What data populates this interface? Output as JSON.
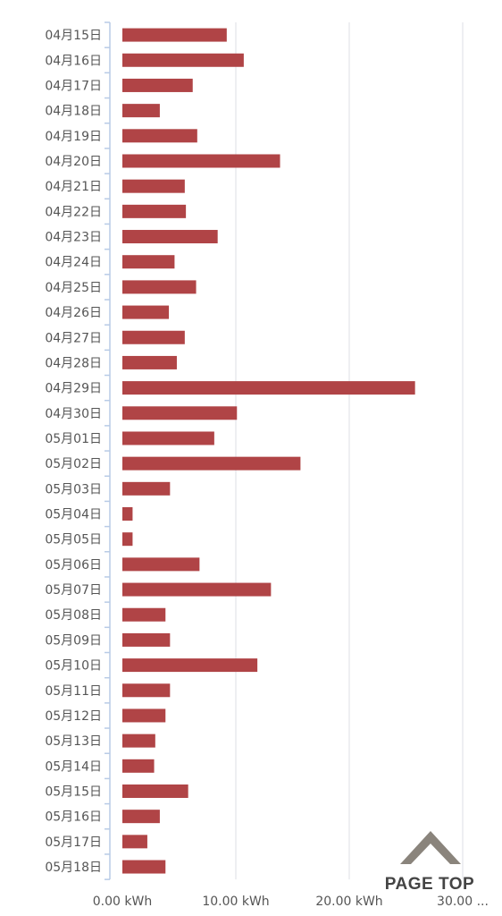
{
  "chart_data": {
    "type": "bar",
    "orientation": "horizontal",
    "categories": [
      "04月15日",
      "04月16日",
      "04月17日",
      "04月18日",
      "04月19日",
      "04月20日",
      "04月21日",
      "04月22日",
      "04月23日",
      "04月24日",
      "04月25日",
      "04月26日",
      "04月27日",
      "04月28日",
      "04月29日",
      "04月30日",
      "05月01日",
      "05月02日",
      "05月03日",
      "05月04日",
      "05月05日",
      "05月06日",
      "05月07日",
      "05月08日",
      "05月09日",
      "05月10日",
      "05月11日",
      "05月12日",
      "05月13日",
      "05月14日",
      "05月15日",
      "05月16日",
      "05月17日",
      "05月18日"
    ],
    "values": [
      9.2,
      10.7,
      6.2,
      3.3,
      6.6,
      13.9,
      5.5,
      5.6,
      8.4,
      4.6,
      6.5,
      4.1,
      5.5,
      4.8,
      25.8,
      10.1,
      8.1,
      15.7,
      4.2,
      0.9,
      0.9,
      6.8,
      13.1,
      3.8,
      4.2,
      11.9,
      4.2,
      3.8,
      2.9,
      2.8,
      5.8,
      3.3,
      2.2,
      3.8
    ],
    "xlim": [
      0,
      30
    ],
    "x_ticks": [
      {
        "value": 0,
        "label": "0.00 kWh"
      },
      {
        "value": 10,
        "label": "10.00 kWh"
      },
      {
        "value": 20,
        "label": "20.00 kWh"
      },
      {
        "value": 30,
        "label": "30.00 ..."
      }
    ],
    "bar_color": "#b04446",
    "grid": true,
    "grid_color": "#dcdfe6",
    "axis_color": "#b8cbe6",
    "title": "",
    "xlabel": "",
    "ylabel": ""
  },
  "page_top": {
    "label": "PAGE TOP",
    "icon": "chevron-up-icon",
    "color": "#8a847c"
  }
}
